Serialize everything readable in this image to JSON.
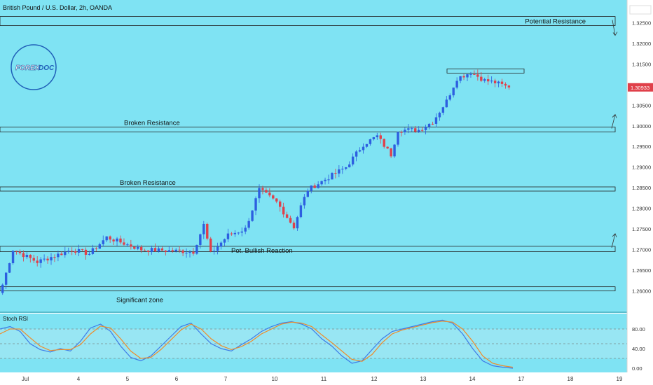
{
  "header": {
    "title": "British Pound / U.S. Dollar, 2h, OANDA"
  },
  "logo": {
    "text_a": "FOREX",
    "text_b": "DOC"
  },
  "colors": {
    "background": "#7fe3f3",
    "up": "#2d5fe0",
    "down": "#e0404a",
    "zone_fill": "#7fe3f3",
    "zone_stroke": "#222222",
    "stoch_k": "#3d7be8",
    "stoch_d": "#ef8c2a",
    "stoch_band": "#a9e8f3",
    "price_tag": "#e0404a"
  },
  "chart_data": [
    {
      "type": "candlestick",
      "title": "British Pound / U.S. Dollar, 2h, OANDA",
      "ylim": [
        1.255,
        1.3305
      ],
      "price_axis_ticks": [
        "1.32500",
        "1.32000",
        "1.31500",
        "1.31000",
        "1.30500",
        "1.30000",
        "1.29500",
        "1.29000",
        "1.28500",
        "1.28000",
        "1.27500",
        "1.27000",
        "1.26500",
        "1.26000"
      ],
      "last_price": "1.30933",
      "date_axis_labels": [
        "Jul",
        "4",
        "5",
        "6",
        "7",
        "10",
        "11",
        "12",
        "13",
        "14",
        "17",
        "18",
        "19"
      ],
      "series_close_anchors": [
        {
          "bar": 0,
          "close": 1.2615
        },
        {
          "bar": 3,
          "close": 1.27
        },
        {
          "bar": 10,
          "close": 1.267
        },
        {
          "bar": 20,
          "close": 1.27
        },
        {
          "bar": 25,
          "close": 1.269
        },
        {
          "bar": 30,
          "close": 1.273
        },
        {
          "bar": 40,
          "close": 1.27
        },
        {
          "bar": 55,
          "close": 1.2695
        },
        {
          "bar": 58,
          "close": 1.276
        },
        {
          "bar": 60,
          "close": 1.269
        },
        {
          "bar": 65,
          "close": 1.2735
        },
        {
          "bar": 70,
          "close": 1.275
        },
        {
          "bar": 74,
          "close": 1.2845
        },
        {
          "bar": 79,
          "close": 1.2815
        },
        {
          "bar": 84,
          "close": 1.2755
        },
        {
          "bar": 86,
          "close": 1.2805
        },
        {
          "bar": 88,
          "close": 1.2845
        },
        {
          "bar": 95,
          "close": 1.288
        },
        {
          "bar": 99,
          "close": 1.29
        },
        {
          "bar": 104,
          "close": 1.2955
        },
        {
          "bar": 108,
          "close": 1.2975
        },
        {
          "bar": 112,
          "close": 1.293
        },
        {
          "bar": 114,
          "close": 1.299
        },
        {
          "bar": 120,
          "close": 1.299
        },
        {
          "bar": 124,
          "close": 1.301
        },
        {
          "bar": 128,
          "close": 1.306
        },
        {
          "bar": 131,
          "close": 1.3115
        },
        {
          "bar": 135,
          "close": 1.313
        },
        {
          "bar": 139,
          "close": 1.311
        },
        {
          "bar": 142,
          "close": 1.3105
        },
        {
          "bar": 146,
          "close": 1.3093
        }
      ],
      "zones": [
        {
          "label": "Potential Resistance",
          "top": 1.3265,
          "bottom": 1.3243,
          "label_align": "right",
          "arrow": "down"
        },
        {
          "label": "Broken Resistance",
          "top": 1.2997,
          "bottom": 1.2985,
          "label_align": "left",
          "arrow": "up"
        },
        {
          "label": "Broken Resistance",
          "top": 1.2852,
          "bottom": 1.2845,
          "label_align": "left",
          "arrow": "none"
        },
        {
          "label": "Pot. Bullish Reaction",
          "top": 1.2708,
          "bottom": 1.2695,
          "label_align": "inside",
          "arrow": "up"
        },
        {
          "label": "Significant zone",
          "top": 1.261,
          "bottom": 1.26,
          "label_align": "left",
          "arrow": "none"
        },
        {
          "label": "",
          "top": 1.3138,
          "bottom": 1.313,
          "label_align": "none",
          "arrow": "none"
        }
      ]
    },
    {
      "type": "line",
      "title": "Stoch RSI",
      "ylim": [
        0,
        100
      ],
      "ticks": [
        "80.00",
        "40.00",
        "0.00"
      ],
      "band": [
        20,
        80
      ],
      "series": [
        {
          "values": [
            80,
            85,
            75,
            50,
            38,
            33,
            40,
            35,
            55,
            82,
            90,
            75,
            45,
            22,
            15,
            25,
            45,
            65,
            85,
            92,
            70,
            50,
            40,
            35,
            48,
            60,
            75,
            85,
            92,
            95,
            90,
            80,
            60,
            45,
            25,
            10,
            15,
            38,
            60,
            75,
            80,
            85,
            90,
            95,
            98,
            92,
            70,
            40,
            15,
            5,
            2,
            0
          ]
        },
        {
          "values": [
            70,
            80,
            80,
            62,
            45,
            36,
            38,
            38,
            48,
            70,
            86,
            82,
            60,
            35,
            20,
            22,
            38,
            58,
            78,
            90,
            80,
            60,
            46,
            38,
            44,
            55,
            70,
            80,
            90,
            94,
            92,
            85,
            68,
            52,
            35,
            18,
            14,
            28,
            52,
            70,
            78,
            83,
            88,
            93,
            96,
            94,
            80,
            55,
            25,
            10,
            5,
            2
          ]
        }
      ]
    }
  ]
}
